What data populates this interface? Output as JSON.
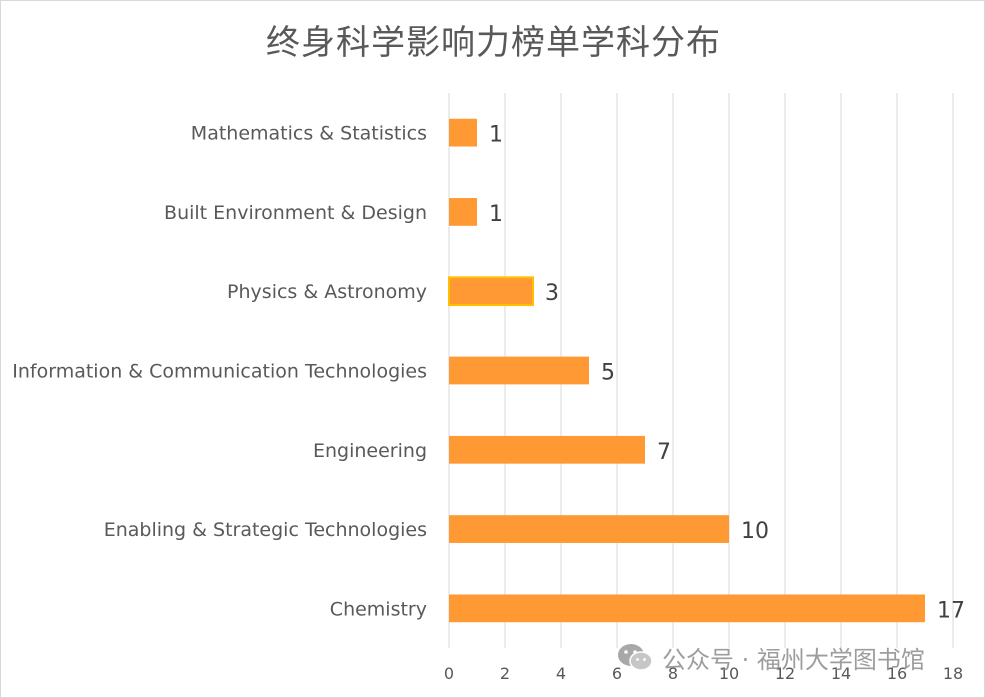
{
  "chart_data": {
    "type": "bar",
    "orientation": "horizontal",
    "title": "终身科学影响力榜单学科分布",
    "categories": [
      "Mathematics & Statistics",
      "Built Environment & Design",
      "Physics & Astronomy",
      "Information & Communication Technologies",
      "Engineering",
      "Enabling & Strategic Technologies",
      "Chemistry"
    ],
    "values": [
      1,
      1,
      3,
      5,
      7,
      10,
      17
    ],
    "xlim": [
      0,
      18
    ],
    "xticks": [
      0,
      2,
      4,
      6,
      8,
      10,
      12,
      14,
      16,
      18
    ],
    "grid": "vertical",
    "bar_color": "#FF9933",
    "highlight_border_color": "#FFC000",
    "xlabel": "",
    "ylabel": ""
  },
  "watermark": {
    "text": "公众号 · 福州大学图书馆",
    "icon": "wechat-icon"
  }
}
